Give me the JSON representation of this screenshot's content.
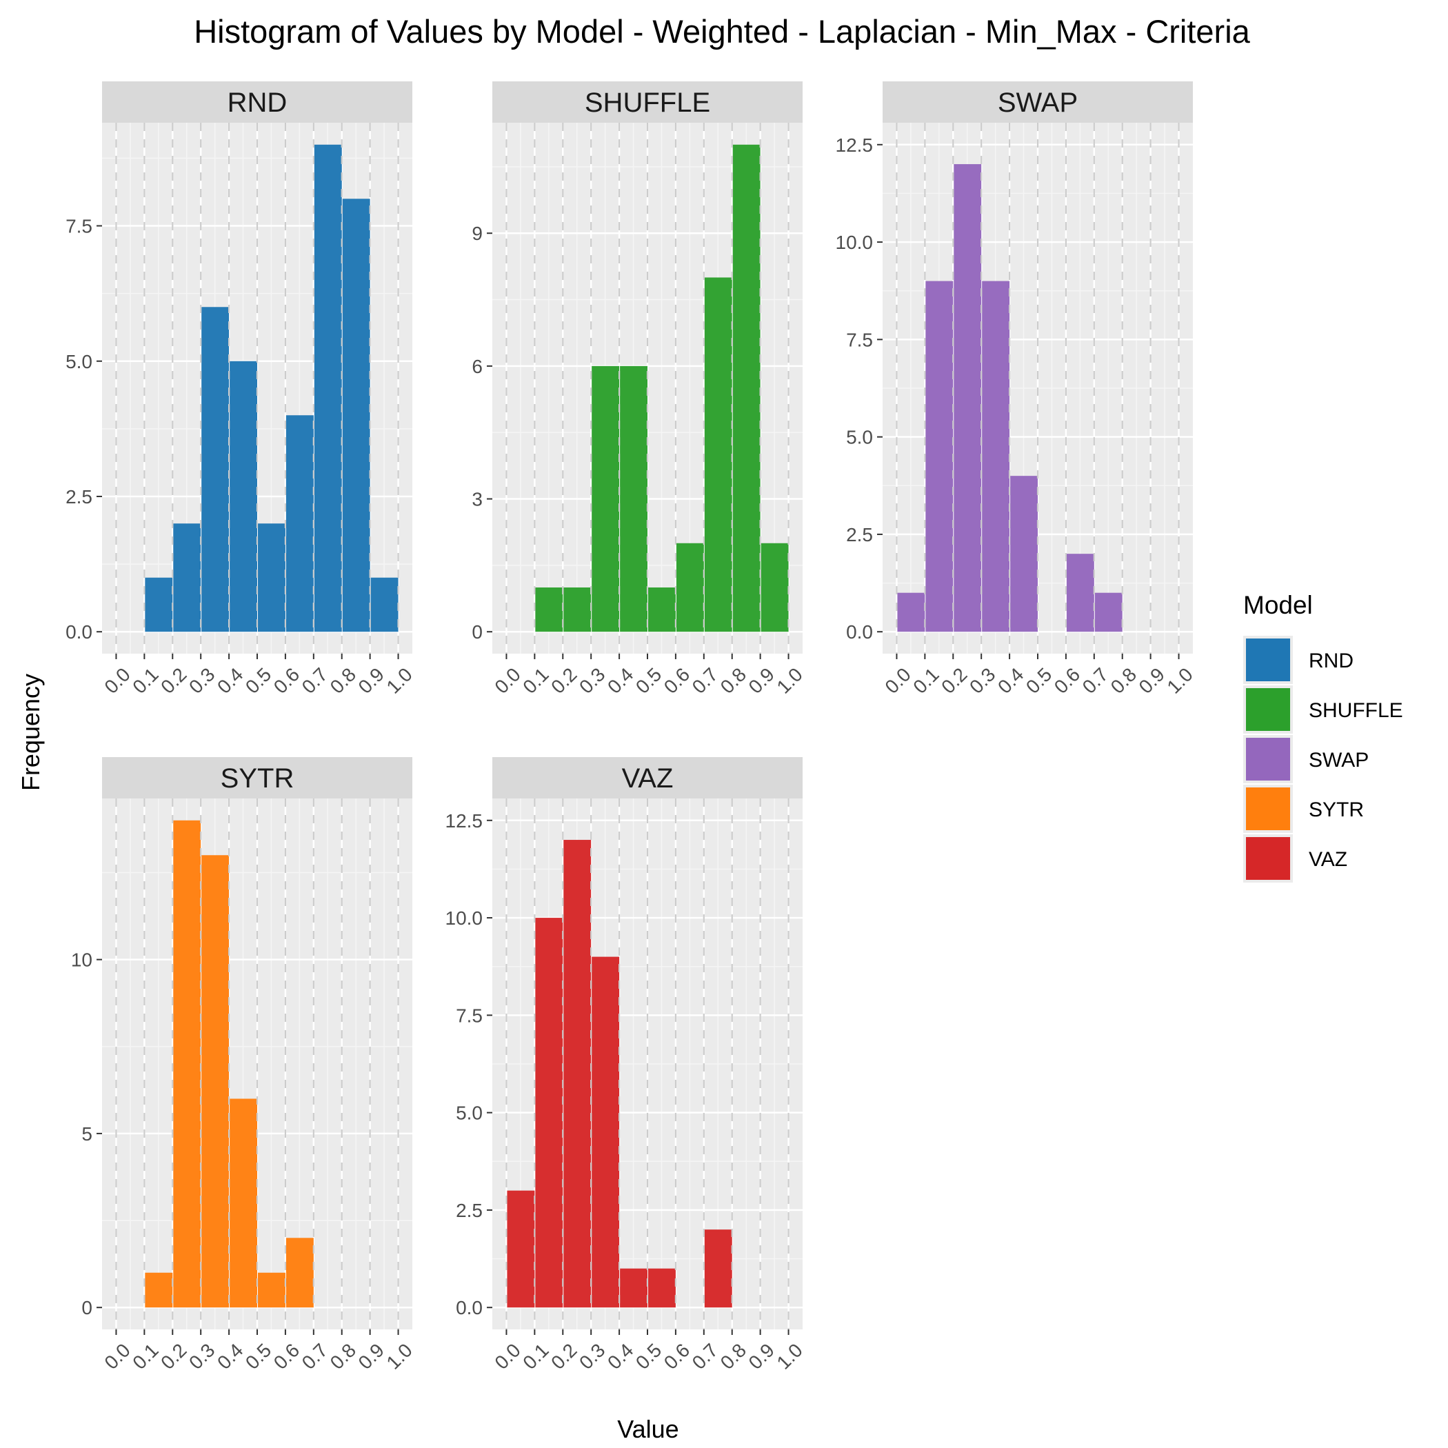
{
  "chart_data": {
    "type": "bar",
    "title": "Histogram of Values by Model - Weighted - Laplacian - Min_Max - Criteria",
    "xlabel": "Value",
    "ylabel": "Frequency",
    "bin_edges": [
      0.0,
      0.1,
      0.2,
      0.3,
      0.4,
      0.5,
      0.6,
      0.7,
      0.8,
      0.9,
      1.0
    ],
    "x_ticks": [
      "0.0",
      "0.1",
      "0.2",
      "0.3",
      "0.4",
      "0.5",
      "0.6",
      "0.7",
      "0.8",
      "0.9",
      "1.0"
    ],
    "legend": {
      "title": "Model",
      "position": "right"
    },
    "series": [
      {
        "name": "RND",
        "color": "#1f77b4",
        "values": [
          0,
          1,
          2,
          6,
          5,
          2,
          4,
          9,
          8,
          1
        ],
        "ylim": [
          0,
          9
        ],
        "y_ticks": [
          0,
          2.5,
          5,
          7.5
        ],
        "y_tick_labels": [
          "0.0",
          "2.5",
          "5.0",
          "7.5"
        ]
      },
      {
        "name": "SHUFFLE",
        "color": "#2ca02c",
        "values": [
          0,
          1,
          1,
          6,
          6,
          1,
          2,
          8,
          11,
          2
        ],
        "ylim": [
          0,
          11
        ],
        "y_ticks": [
          0,
          3,
          6,
          9
        ],
        "y_tick_labels": [
          "0",
          "3",
          "6",
          "9"
        ]
      },
      {
        "name": "SWAP",
        "color": "#9467bd",
        "values": [
          1,
          9,
          12,
          9,
          4,
          0,
          2,
          1,
          0,
          0
        ],
        "ylim": [
          0,
          12.5
        ],
        "y_ticks": [
          0,
          2.5,
          5,
          7.5,
          10,
          12.5
        ],
        "y_tick_labels": [
          "0.0",
          "2.5",
          "5.0",
          "7.5",
          "10.0",
          "12.5"
        ]
      },
      {
        "name": "SYTR",
        "color": "#ff7f0e",
        "values": [
          0,
          1,
          14,
          13,
          6,
          1,
          2,
          0,
          0,
          0
        ],
        "ylim": [
          0,
          14
        ],
        "y_ticks": [
          0,
          5,
          10
        ],
        "y_tick_labels": [
          "0",
          "5",
          "10"
        ]
      },
      {
        "name": "VAZ",
        "color": "#d62728",
        "values": [
          3,
          10,
          12,
          9,
          1,
          1,
          0,
          2,
          0,
          0
        ],
        "ylim": [
          0,
          12.5
        ],
        "y_ticks": [
          0,
          2.5,
          5,
          7.5,
          10,
          12.5
        ],
        "y_tick_labels": [
          "0.0",
          "2.5",
          "5.0",
          "7.5",
          "10.0",
          "12.5"
        ]
      }
    ]
  }
}
